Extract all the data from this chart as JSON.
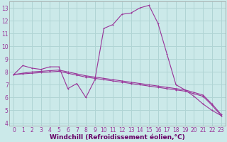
{
  "background_color": "#cbe9e9",
  "grid_color": "#b0d4d4",
  "line_color": "#993399",
  "marker_color": "#993399",
  "xlabel": "Windchill (Refroidissement éolien,°C)",
  "xlabel_color": "#660066",
  "ylim": [
    3.8,
    13.5
  ],
  "xlim": [
    -0.5,
    23.5
  ],
  "yticks": [
    4,
    5,
    6,
    7,
    8,
    9,
    10,
    11,
    12,
    13
  ],
  "xticks": [
    0,
    1,
    2,
    3,
    4,
    5,
    6,
    7,
    8,
    9,
    10,
    11,
    12,
    13,
    14,
    15,
    16,
    17,
    18,
    19,
    20,
    21,
    22,
    23
  ],
  "line1_x": [
    0,
    1,
    2,
    3,
    4,
    5,
    6,
    7,
    8,
    9,
    10,
    11,
    12,
    13,
    14,
    15,
    16,
    17,
    18,
    19,
    20,
    21,
    22,
    23
  ],
  "line1_y": [
    7.8,
    8.5,
    8.3,
    8.2,
    8.4,
    8.4,
    6.7,
    7.1,
    6.0,
    7.4,
    11.4,
    11.7,
    12.5,
    12.6,
    13.0,
    13.2,
    11.8,
    9.4,
    7.0,
    6.6,
    6.1,
    5.5,
    5.0,
    4.6
  ],
  "line2_x": [
    0,
    1,
    2,
    3,
    4,
    5,
    6,
    7,
    8,
    9,
    10,
    11,
    12,
    13,
    14,
    15,
    16,
    17,
    18,
    19,
    20,
    21,
    22,
    23
  ],
  "line2_y": [
    7.8,
    7.9,
    8.0,
    8.05,
    8.1,
    8.15,
    8.0,
    7.85,
    7.7,
    7.6,
    7.5,
    7.4,
    7.3,
    7.2,
    7.1,
    7.0,
    6.9,
    6.8,
    6.7,
    6.6,
    6.4,
    6.2,
    5.5,
    4.7
  ],
  "line3_x": [
    0,
    1,
    2,
    3,
    4,
    5,
    6,
    7,
    8,
    9,
    10,
    11,
    12,
    13,
    14,
    15,
    16,
    17,
    18,
    19,
    20,
    21,
    22,
    23
  ],
  "line3_y": [
    7.8,
    7.85,
    7.9,
    7.95,
    8.0,
    8.05,
    7.9,
    7.75,
    7.6,
    7.5,
    7.4,
    7.3,
    7.2,
    7.1,
    7.0,
    6.9,
    6.8,
    6.7,
    6.6,
    6.5,
    6.3,
    6.1,
    5.4,
    4.6
  ],
  "title_fontsize": 6.0,
  "axis_fontsize": 5.5,
  "xlabel_fontsize": 6.5,
  "lw": 0.8,
  "ms": 2.0
}
